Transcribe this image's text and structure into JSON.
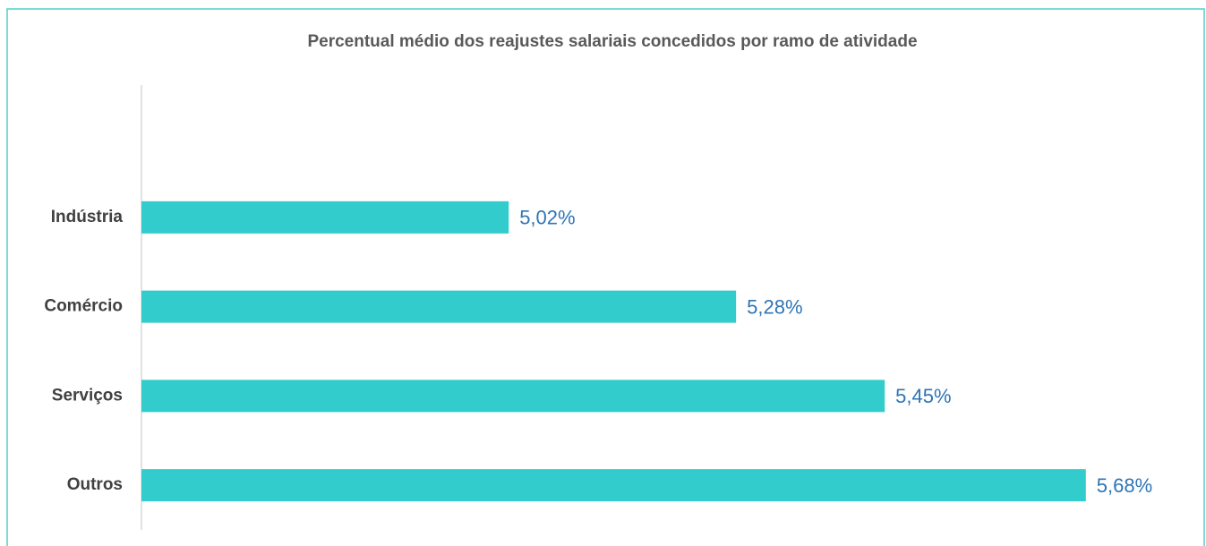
{
  "chart_data": {
    "type": "bar",
    "orientation": "horizontal",
    "title": "Percentual médio dos reajustes salariais concedidos por ramo de atividade",
    "categories": [
      "Indústria",
      "Comércio",
      "Serviços",
      "Outros"
    ],
    "values": [
      5.02,
      5.28,
      5.45,
      5.68
    ],
    "value_labels": [
      "5,02%",
      "5,28%",
      "5,45%",
      "5,68%"
    ],
    "color": "#33cccc",
    "label_color": "#2e75b6",
    "xlim": [
      4.6,
      5.8
    ]
  }
}
